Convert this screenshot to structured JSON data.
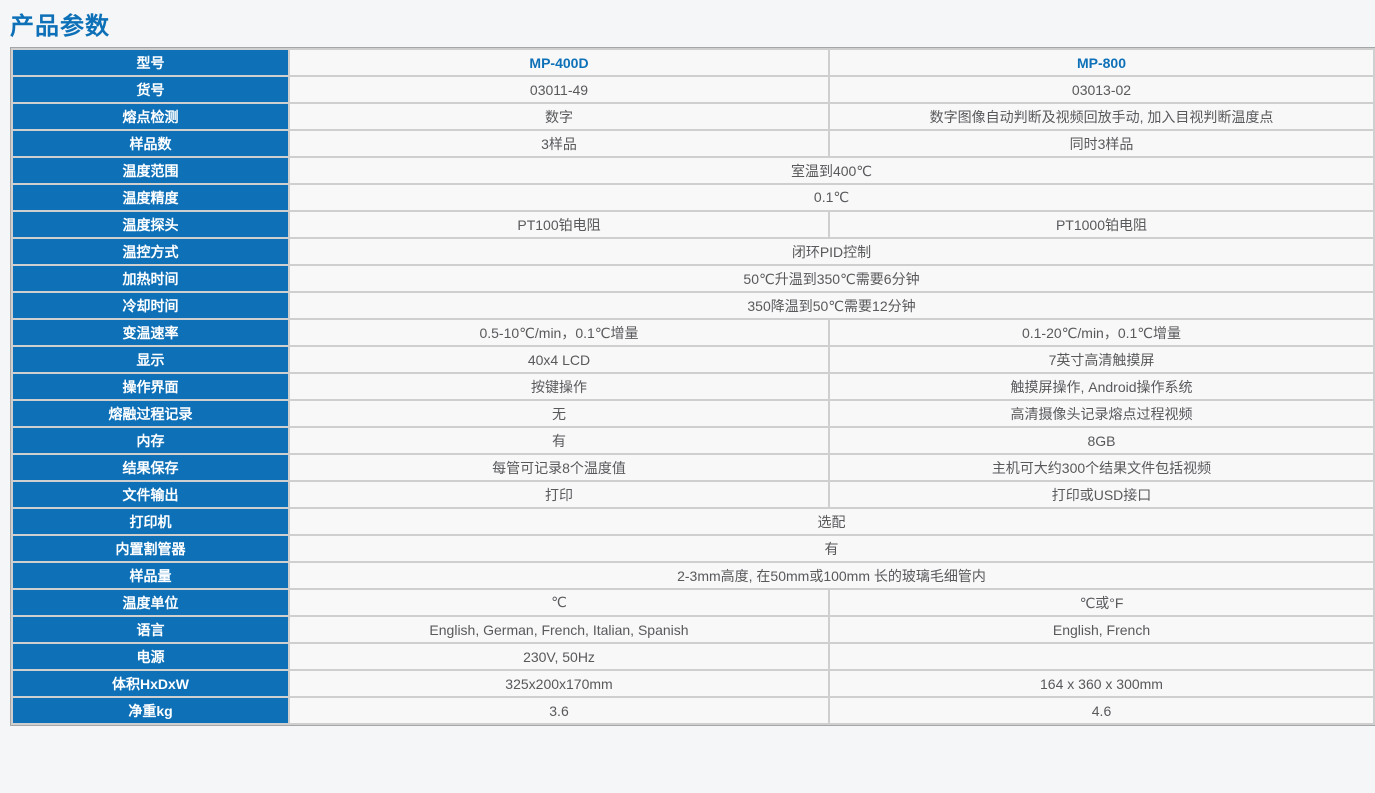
{
  "page": {
    "title": "产品参数"
  },
  "colors": {
    "accent_blue": "#0e71b8",
    "label_cell_bg": "#0e71b8",
    "label_text": "#ffffff",
    "value_text": "#58595b",
    "value_cell_bg": "#f8f8f9",
    "grid_line": "#cfcfcf"
  },
  "table": {
    "rows": [
      {
        "label": "型号",
        "merged": false,
        "header": true,
        "left": "MP-400D",
        "right": "MP-800"
      },
      {
        "label": "货号",
        "merged": false,
        "header": false,
        "left": "03011-49",
        "right": "03013-02"
      },
      {
        "label": "熔点检测",
        "merged": false,
        "header": false,
        "left": "数字",
        "right": "数字图像自动判断及视频回放手动, 加入目视判断温度点"
      },
      {
        "label": "样品数",
        "merged": false,
        "header": false,
        "left": "3样品",
        "right": "同时3样品"
      },
      {
        "label": "温度范围",
        "merged": true,
        "header": false,
        "value": "室温到400℃"
      },
      {
        "label": "温度精度",
        "merged": true,
        "header": false,
        "value": "0.1℃"
      },
      {
        "label": "温度探头",
        "merged": false,
        "header": false,
        "left": "PT100铂电阻",
        "right": "PT1000铂电阻"
      },
      {
        "label": "温控方式",
        "merged": true,
        "header": false,
        "value": "闭环PID控制"
      },
      {
        "label": "加热时间",
        "merged": true,
        "header": false,
        "value": "50℃升温到350℃需要6分钟"
      },
      {
        "label": "冷却时间",
        "merged": true,
        "header": false,
        "value": "350降温到50℃需要12分钟"
      },
      {
        "label": "变温速率",
        "merged": false,
        "header": false,
        "left": "0.5-10℃/min，0.1℃增量",
        "right": "0.1-20℃/min，0.1℃增量"
      },
      {
        "label": "显示",
        "merged": false,
        "header": false,
        "left": "40x4 LCD",
        "right": "7英寸高清触摸屏"
      },
      {
        "label": "操作界面",
        "merged": false,
        "header": false,
        "left": "按键操作",
        "right": "触摸屏操作, Android操作系统"
      },
      {
        "label": "熔融过程记录",
        "merged": false,
        "header": false,
        "left": "无",
        "right": "高清摄像头记录熔点过程视频"
      },
      {
        "label": "内存",
        "merged": false,
        "header": false,
        "left": "有",
        "right": "8GB"
      },
      {
        "label": "结果保存",
        "merged": false,
        "header": false,
        "left": "每管可记录8个温度值",
        "right": "主机可大约300个结果文件包括视频"
      },
      {
        "label": "文件输出",
        "merged": false,
        "header": false,
        "left": "打印",
        "right": "打印或USD接口"
      },
      {
        "label": "打印机",
        "merged": true,
        "header": false,
        "value": "选配"
      },
      {
        "label": "内置割管器",
        "merged": true,
        "header": false,
        "value": "有"
      },
      {
        "label": "样品量",
        "merged": true,
        "header": false,
        "value": "2-3mm高度, 在50mm或100mm 长的玻璃毛细管内"
      },
      {
        "label": "温度单位",
        "merged": false,
        "header": false,
        "left": "℃",
        "right": "℃或°F"
      },
      {
        "label": "语言",
        "merged": false,
        "header": false,
        "left": "English, German, French, Italian, Spanish",
        "right": "English, French"
      },
      {
        "label": "电源",
        "merged": false,
        "header": false,
        "left": "230V, 50Hz",
        "right": ""
      },
      {
        "label": "体积HxDxW",
        "merged": false,
        "header": false,
        "left": "325x200x170mm",
        "right": "164 x 360 x 300mm"
      },
      {
        "label": "净重kg",
        "merged": false,
        "header": false,
        "left": "3.6",
        "right": "4.6"
      }
    ]
  }
}
